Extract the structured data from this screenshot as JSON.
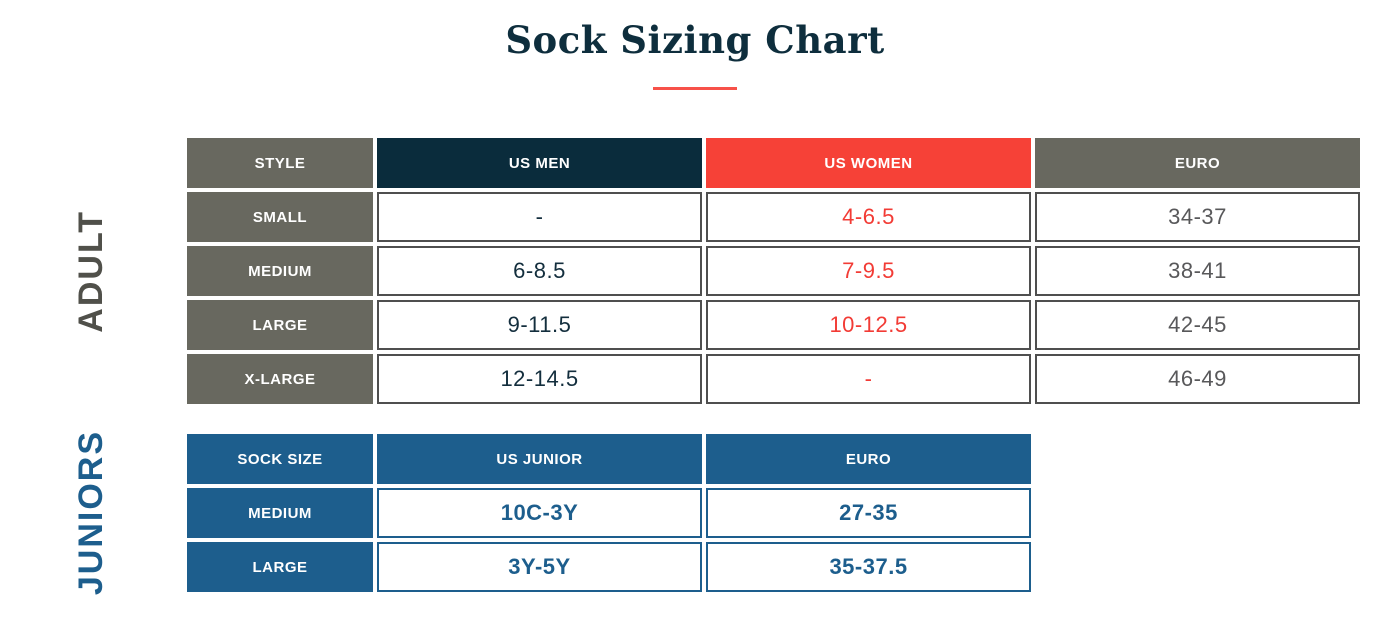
{
  "page": {
    "title": "Sock Sizing Chart"
  },
  "colors": {
    "title_navy": "#0e2e3d",
    "divider_red": "#f75149",
    "header_gray": "#68685f",
    "header_navy": "#0a2c3c",
    "header_red": "#f64137",
    "header_blue": "#1d5e8d",
    "adult_border_gray": "#4f4f4f",
    "data_navy": "#132e3d",
    "data_red": "#f23b35",
    "data_gray": "#58585a",
    "data_blue": "#1d5e8d",
    "adult_label_gray": "#50504a"
  },
  "adult": {
    "label": "ADULT",
    "headers": [
      "STYLE",
      "US MEN",
      "US WOMEN",
      "EURO"
    ],
    "rows": [
      {
        "style": "SMALL",
        "us_men": "-",
        "us_women": "4-6.5",
        "euro": "34-37"
      },
      {
        "style": "MEDIUM",
        "us_men": "6-8.5",
        "us_women": "7-9.5",
        "euro": "38-41"
      },
      {
        "style": "LARGE",
        "us_men": "9-11.5",
        "us_women": "10-12.5",
        "euro": "42-45"
      },
      {
        "style": "X-LARGE",
        "us_men": "12-14.5",
        "us_women": "-",
        "euro": "46-49"
      }
    ]
  },
  "juniors": {
    "label": "JUNIORS",
    "headers": [
      "SOCK SIZE",
      "US JUNIOR",
      "EURO"
    ],
    "rows": [
      {
        "sock_size": "MEDIUM",
        "us_junior": "10C-3Y",
        "euro": "27-35"
      },
      {
        "sock_size": "LARGE",
        "us_junior": "3Y-5Y",
        "euro": "35-37.5"
      }
    ]
  },
  "chart_data": [
    {
      "type": "table",
      "title": "Sock Sizing Chart - Adult",
      "columns": [
        "STYLE",
        "US MEN",
        "US WOMEN",
        "EURO"
      ],
      "rows": [
        [
          "SMALL",
          "-",
          "4-6.5",
          "34-37"
        ],
        [
          "MEDIUM",
          "6-8.5",
          "7-9.5",
          "38-41"
        ],
        [
          "LARGE",
          "9-11.5",
          "10-12.5",
          "42-45"
        ],
        [
          "X-LARGE",
          "12-14.5",
          "-",
          "46-49"
        ]
      ]
    },
    {
      "type": "table",
      "title": "Sock Sizing Chart - Juniors",
      "columns": [
        "SOCK SIZE",
        "US JUNIOR",
        "EURO"
      ],
      "rows": [
        [
          "MEDIUM",
          "10C-3Y",
          "27-35"
        ],
        [
          "LARGE",
          "3Y-5Y",
          "35-37.5"
        ]
      ]
    }
  ]
}
